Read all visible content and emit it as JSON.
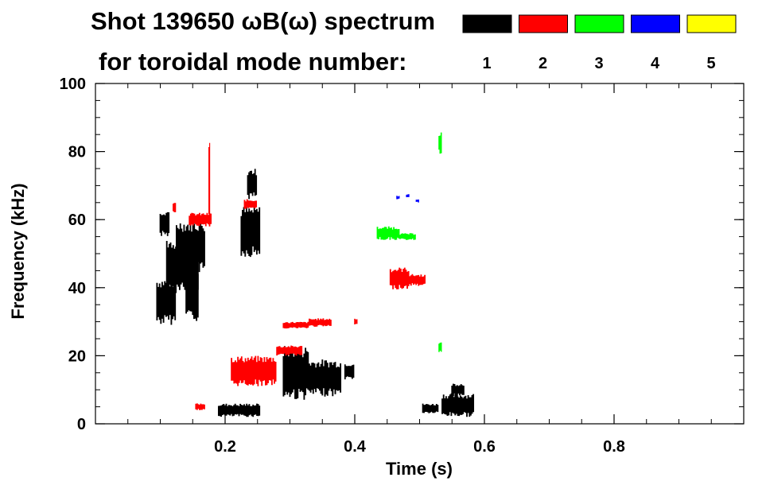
{
  "chart_data": {
    "type": "scatter",
    "title_line1": "Shot 139650 ωB(ω) spectrum",
    "title_line2": "for toroidal mode number:",
    "xlabel": "Time (s)",
    "ylabel": "Frequency (kHz)",
    "xlim": [
      0.0,
      1.0
    ],
    "ylim": [
      0,
      100
    ],
    "x_ticks": [
      0.2,
      0.4,
      0.6,
      0.8
    ],
    "x_tick_labels": [
      "0.2",
      "0.4",
      "0.6",
      "0.8"
    ],
    "y_ticks": [
      0,
      20,
      40,
      60,
      80,
      100
    ],
    "y_tick_labels": [
      "0",
      "20",
      "40",
      "60",
      "80",
      "100"
    ],
    "legend": [
      {
        "label": "1",
        "color": "#000000"
      },
      {
        "label": "2",
        "color": "#ff0000"
      },
      {
        "label": "3",
        "color": "#00ff00"
      },
      {
        "label": "4",
        "color": "#0000ff"
      },
      {
        "label": "5",
        "color": "#ffff00"
      }
    ],
    "series": [
      {
        "name": "n=1",
        "color": "#000000",
        "regions": [
          {
            "t": [
              0.095,
              0.125
            ],
            "f": [
              29,
              43
            ]
          },
          {
            "t": [
              0.11,
              0.16
            ],
            "f": [
              38,
              55
            ]
          },
          {
            "t": [
              0.125,
              0.17
            ],
            "f": [
              44,
              60
            ]
          },
          {
            "t": [
              0.14,
              0.16
            ],
            "f": [
              30,
              45
            ]
          },
          {
            "t": [
              0.1,
              0.115
            ],
            "f": [
              55,
              63
            ]
          },
          {
            "t": [
              0.225,
              0.255
            ],
            "f": [
              49,
              64
            ]
          },
          {
            "t": [
              0.235,
              0.25
            ],
            "f": [
              66,
              75
            ]
          },
          {
            "t": [
              0.19,
              0.255
            ],
            "f": [
              2,
              6
            ]
          },
          {
            "t": [
              0.29,
              0.33
            ],
            "f": [
              7,
              23
            ]
          },
          {
            "t": [
              0.33,
              0.38
            ],
            "f": [
              8,
              19
            ]
          },
          {
            "t": [
              0.385,
              0.4
            ],
            "f": [
              13,
              18
            ]
          },
          {
            "t": [
              0.505,
              0.53
            ],
            "f": [
              3,
              6
            ]
          },
          {
            "t": [
              0.535,
              0.585
            ],
            "f": [
              2,
              9
            ]
          },
          {
            "t": [
              0.55,
              0.57
            ],
            "f": [
              8,
              12
            ]
          }
        ]
      },
      {
        "name": "n=2",
        "color": "#ff0000",
        "regions": [
          {
            "t": [
              0.145,
              0.18
            ],
            "f": [
              58,
              62
            ]
          },
          {
            "t": [
              0.175,
              0.177
            ],
            "f": [
              60,
              85
            ]
          },
          {
            "t": [
              0.12,
              0.125
            ],
            "f": [
              62,
              65
            ]
          },
          {
            "t": [
              0.23,
              0.25
            ],
            "f": [
              63,
              66
            ]
          },
          {
            "t": [
              0.21,
              0.28
            ],
            "f": [
              11,
              20
            ]
          },
          {
            "t": [
              0.28,
              0.32
            ],
            "f": [
              20,
              23
            ]
          },
          {
            "t": [
              0.29,
              0.33
            ],
            "f": [
              28,
              30
            ]
          },
          {
            "t": [
              0.33,
              0.365
            ],
            "f": [
              28.5,
              31
            ]
          },
          {
            "t": [
              0.4,
              0.405
            ],
            "f": [
              29,
              31
            ]
          },
          {
            "t": [
              0.455,
              0.485
            ],
            "f": [
              39.5,
              46
            ]
          },
          {
            "t": [
              0.485,
              0.51
            ],
            "f": [
              40.5,
              44
            ]
          },
          {
            "t": [
              0.155,
              0.17
            ],
            "f": [
              4,
              6
            ]
          }
        ]
      },
      {
        "name": "n=3",
        "color": "#00ff00",
        "regions": [
          {
            "t": [
              0.435,
              0.47
            ],
            "f": [
              54,
              58
            ]
          },
          {
            "t": [
              0.47,
              0.495
            ],
            "f": [
              54,
              56
            ]
          },
          {
            "t": [
              0.53,
              0.535
            ],
            "f": [
              79,
              86
            ]
          },
          {
            "t": [
              0.53,
              0.535
            ],
            "f": [
              21,
              24
            ]
          }
        ]
      },
      {
        "name": "n=4",
        "color": "#0000ff",
        "regions": [
          {
            "t": [
              0.465,
              0.47
            ],
            "f": [
              66,
              67
            ]
          },
          {
            "t": [
              0.48,
              0.485
            ],
            "f": [
              66.5,
              67.5
            ]
          },
          {
            "t": [
              0.495,
              0.5
            ],
            "f": [
              65,
              66
            ]
          }
        ]
      },
      {
        "name": "n=5",
        "color": "#ffff00",
        "regions": []
      }
    ]
  }
}
